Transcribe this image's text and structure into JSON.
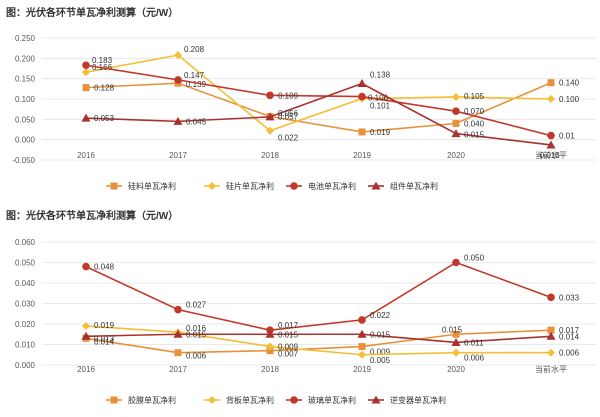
{
  "chart_data": [
    {
      "type": "line",
      "title": "图：光伏各环节单瓦净利测算（元/W）",
      "categories": [
        "2016",
        "2017",
        "2018",
        "2019",
        "2020",
        "当前水平"
      ],
      "ylim": [
        -0.05,
        0.25
      ],
      "yticks": [
        "-0.050",
        "0.000",
        "0.050",
        "0.100",
        "0.150",
        "0.200",
        "0.250"
      ],
      "grid": true,
      "legend_position": "bottom",
      "series": [
        {
          "name": "硅料单瓦净利",
          "values": [
            0.128,
            0.139,
            0.057,
            0.019,
            0.04,
            0.14
          ],
          "color": "#E8913A",
          "marker": "square",
          "labels": [
            "0.128",
            "0.139",
            "0.057",
            "0.019",
            "0.040",
            "0.140"
          ]
        },
        {
          "name": "硅片单瓦净利",
          "values": [
            0.166,
            0.208,
            0.022,
            0.101,
            0.105,
            0.1
          ],
          "color": "#F5BE37",
          "marker": "diamond",
          "labels": [
            "0.166",
            "0.208",
            "0.022",
            "0.101",
            "0.105",
            "0.100"
          ]
        },
        {
          "name": "电池单瓦净利",
          "values": [
            0.183,
            0.147,
            0.109,
            0.106,
            0.07,
            0.01
          ],
          "color": "#C0392B",
          "marker": "circle",
          "labels": [
            "0.183",
            "0.147",
            "0.109",
            "0.106",
            "0.070",
            "0.01"
          ]
        },
        {
          "name": "组件单瓦净利",
          "values": [
            0.053,
            0.045,
            0.056,
            0.138,
            0.015,
            -0.013
          ],
          "color": "#A8322D",
          "marker": "triangle",
          "labels": [
            "0.053",
            "0.045",
            "0.056",
            "0.138",
            "0.015",
            "-0.013"
          ]
        }
      ]
    },
    {
      "type": "line",
      "title": "图：光伏各环节单瓦净利测算（元/W）",
      "categories": [
        "2016",
        "2017",
        "2018",
        "2019",
        "2020",
        "当前水平"
      ],
      "ylim": [
        0,
        0.06
      ],
      "yticks": [
        "0.000",
        "0.010",
        "0.020",
        "0.030",
        "0.040",
        "0.050",
        "0.060"
      ],
      "grid": true,
      "legend_position": "bottom",
      "series": [
        {
          "name": "胶膜单瓦净利",
          "values": [
            0.013,
            0.006,
            0.007,
            0.009,
            0.015,
            0.017
          ],
          "color": "#E8913A",
          "marker": "square",
          "labels": [
            "0.013",
            "0.006",
            "0.007",
            "0.009",
            "0.015",
            "0.017"
          ]
        },
        {
          "name": "背板单瓦净利",
          "values": [
            0.019,
            0.016,
            0.009,
            0.005,
            0.006,
            0.006
          ],
          "color": "#F5BE37",
          "marker": "diamond",
          "labels": [
            "0.019",
            "0.016",
            "0.009",
            "0.005",
            "0.006",
            "0.006"
          ]
        },
        {
          "name": "玻璃单瓦净利",
          "values": [
            0.048,
            0.027,
            0.017,
            0.022,
            0.05,
            0.033
          ],
          "color": "#C0392B",
          "marker": "circle",
          "labels": [
            "0.048",
            "0.027",
            "0.017",
            "0.022",
            "0.050",
            "0.033"
          ]
        },
        {
          "name": "逆变器单瓦净利",
          "values": [
            0.014,
            0.015,
            0.015,
            0.015,
            0.011,
            0.014
          ],
          "color": "#A8322D",
          "marker": "triangle",
          "labels": [
            "0.014",
            "0.015",
            "0.015",
            "0.015",
            "0.011",
            "0.014"
          ]
        }
      ]
    }
  ]
}
